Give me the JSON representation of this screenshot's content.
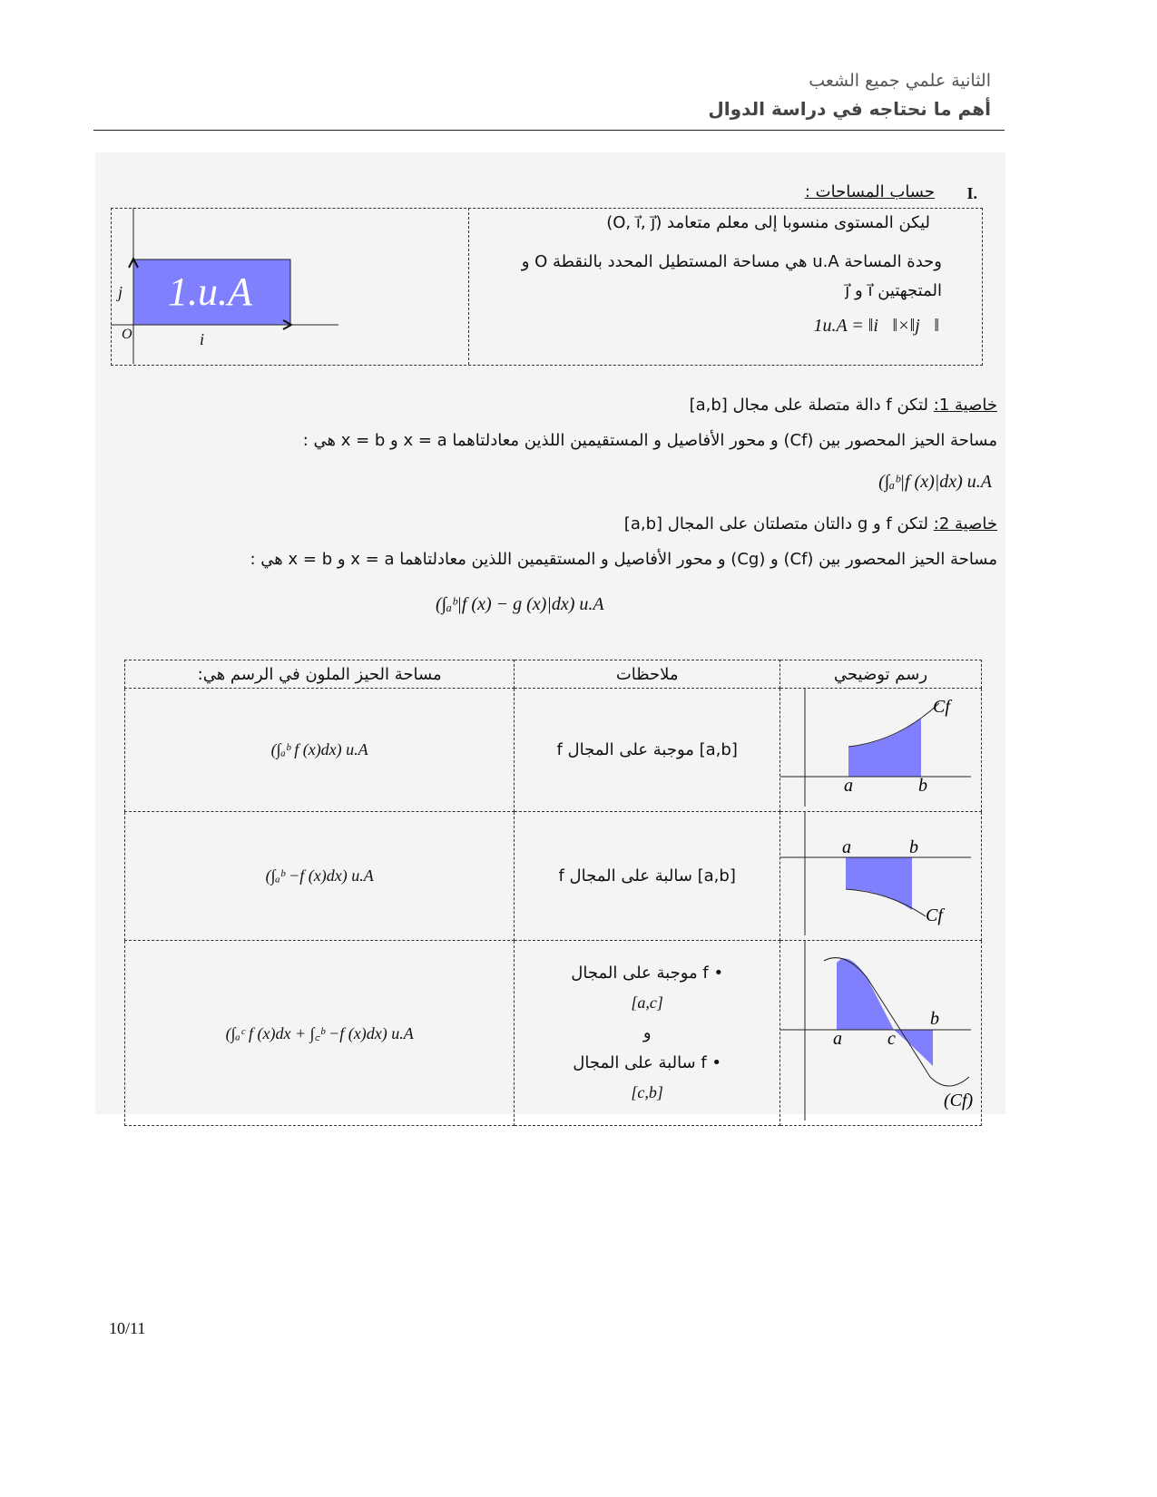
{
  "header": {
    "level": "الثانية علمي جميع الشعب",
    "title": "أهم ما نحتاجه في دراسة الدوال"
  },
  "section": {
    "number": "I.",
    "title": "حساب المساحات :"
  },
  "intro": {
    "line1": "ليكن المستوى منسوبا إلى معلم متعامد (O, i⃗, j⃗)",
    "line2": "وحدة المساحة u.A هي مساحة المستطيل المحدد بالنقطة O و",
    "line3": "المتجهتين i⃗ و j⃗",
    "line4": "1u.A = ‖i⃗‖×‖j⃗‖",
    "diagram": {
      "rect_label": "1.u.A",
      "origin": "O",
      "i": "i⃗",
      "j": "j⃗",
      "fill": "#8080ff"
    }
  },
  "property1": {
    "label": "خاصية 1:",
    "line1": "لتكن f دالة متصلة على مجال [a,b]",
    "line2": "مساحة الحيز المحصور بين (Cf) و محور الأفاصيل و المستقيمين اللذين معادلتاهما x = a و x = b هي :",
    "formula": "(∫ₐᵇ|f (x)|dx) u.A"
  },
  "property2": {
    "label": "خاصية 2:",
    "line1": "لتكن f و g دالتان متصلتان على المجال [a,b]",
    "line2": "مساحة الحيز المحصور بين (Cf) و (Cg) و محور الأفاصيل و المستقيمين اللذين معادلتاهما x = a و x = b هي :",
    "formula": "(∫ₐᵇ|f (x) − g (x)|dx) u.A"
  },
  "table": {
    "headers": [
      "مساحة الحيز الملون في الرسم هي:",
      "ملاحظات",
      "رسم توضيحي"
    ],
    "rows": [
      {
        "area": "(∫ₐᵇ f (x)dx) u.A",
        "note": "f موجبة على المجال [a,b]",
        "labels": {
          "a": "a",
          "b": "b",
          "curve": "Cf"
        }
      },
      {
        "area": "(∫ₐᵇ −f (x)dx) u.A",
        "note": "f سالبة على المجال [a,b]",
        "labels": {
          "a": "a",
          "b": "b",
          "curve": "Cf"
        }
      },
      {
        "area": "(∫ₐᶜ f (x)dx + ∫꜀ᵇ −f (x)dx) u.A",
        "note1": "f موجبة على المجال",
        "interval1": "[a,c]",
        "and": "و",
        "note2": "f سالبة على المجال",
        "interval2": "[c,b]",
        "labels": {
          "a": "a",
          "b": "b",
          "c": "c",
          "curve": "(Cf)"
        }
      }
    ]
  },
  "page_number": "10/11"
}
